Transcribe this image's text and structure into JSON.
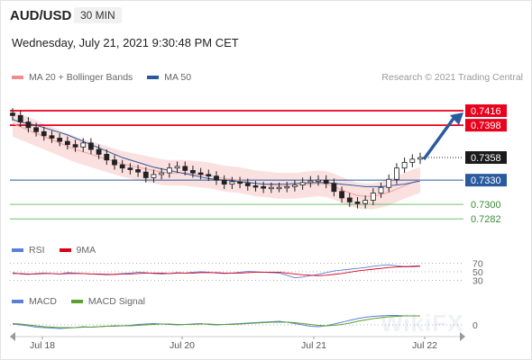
{
  "header": {
    "symbol": "AUD/USD",
    "timeframe": "30 MIN",
    "datetime": "Wednesday, July 21, 2021 9:30:48 PM CET"
  },
  "legend": {
    "ma20": "MA 20 + Bollinger Bands",
    "ma50": "MA 50",
    "copyright": "Research © 2021 Trading Central"
  },
  "rsi_legend": {
    "rsi": "RSI",
    "ma": "9MA"
  },
  "macd_legend": {
    "macd": "MACD",
    "signal": "MACD Signal"
  },
  "colors": {
    "resistance": "#e8001c",
    "support": "#5cb85c",
    "ma50": "#2a5a9e",
    "arrow": "#2a5aa0",
    "bollinger": "#f9d6d6",
    "rsi": "#5b7fd6",
    "rsi_ma": "#d9001b",
    "macd": "#5b7fd6",
    "signal": "#5aa02c",
    "price_tag": "#1a1a1a"
  },
  "chart_data": {
    "type": "candlestick",
    "x_ticks": [
      "Jul 18",
      "Jul 20",
      "Jul 21",
      "Jul 22"
    ],
    "ylim": [
      0.727,
      0.7426
    ],
    "levels": [
      {
        "label": "0.7416",
        "value": 0.7416,
        "kind": "resistance"
      },
      {
        "label": "0.7398",
        "value": 0.7398,
        "kind": "resistance"
      },
      {
        "label": "0.7358",
        "value": 0.7358,
        "kind": "last_price"
      },
      {
        "label": "0.7330",
        "value": 0.733,
        "kind": "pivot"
      },
      {
        "label": "0.7300",
        "value": 0.73,
        "kind": "support"
      },
      {
        "label": "0.7282",
        "value": 0.7282,
        "kind": "support"
      }
    ],
    "close": [
      0.741,
      0.7402,
      0.7395,
      0.739,
      0.7385,
      0.7382,
      0.7378,
      0.7374,
      0.7371,
      0.7376,
      0.7368,
      0.7362,
      0.7355,
      0.7349,
      0.7345,
      0.7343,
      0.734,
      0.7333,
      0.7337,
      0.7339,
      0.7345,
      0.7347,
      0.7342,
      0.7339,
      0.7337,
      0.7335,
      0.733,
      0.7325,
      0.7328,
      0.7326,
      0.7323,
      0.7322,
      0.732,
      0.7321,
      0.7321,
      0.7322,
      0.7324,
      0.7327,
      0.7329,
      0.733,
      0.7326,
      0.7316,
      0.7308,
      0.7303,
      0.7301,
      0.7305,
      0.7314,
      0.7321,
      0.7331,
      0.7345,
      0.7352,
      0.7356,
      0.7358
    ],
    "ma20": [
      0.74,
      0.7396,
      0.7392,
      0.7388,
      0.7384,
      0.738,
      0.7376,
      0.7372,
      0.7368,
      0.7365,
      0.7362,
      0.7359,
      0.7356,
      0.7353,
      0.735,
      0.7348,
      0.7346,
      0.7344,
      0.7342,
      0.734,
      0.7339,
      0.7339,
      0.7339,
      0.7338,
      0.7337,
      0.7336,
      0.7334,
      0.7332,
      0.7331,
      0.733,
      0.7328,
      0.7326,
      0.7325,
      0.7324,
      0.7323,
      0.7323,
      0.7323,
      0.7324,
      0.7325,
      0.7326,
      0.7325,
      0.7322,
      0.7318,
      0.7314,
      0.7311,
      0.731,
      0.731,
      0.7312,
      0.7315,
      0.7319,
      0.7323,
      0.7327,
      0.733
    ],
    "ma50": [
      0.7405,
      0.7402,
      0.74,
      0.7398,
      0.7395,
      0.7392,
      0.7389,
      0.7386,
      0.7382,
      0.7378,
      0.7374,
      0.737,
      0.7366,
      0.7362,
      0.7358,
      0.7355,
      0.7352,
      0.7349,
      0.7346,
      0.7344,
      0.7342,
      0.734,
      0.7338,
      0.7336,
      0.7334,
      0.7332,
      0.7331,
      0.733,
      0.7329,
      0.7328,
      0.7327,
      0.7326,
      0.7325,
      0.7325,
      0.7325,
      0.7325,
      0.7326,
      0.7326,
      0.7327,
      0.7327,
      0.7327,
      0.7326,
      0.7325,
      0.7324,
      0.7323,
      0.7322,
      0.7322,
      0.7322,
      0.7323,
      0.7324,
      0.7325,
      0.7327,
      0.7329
    ],
    "rsi": {
      "levels": [
        "70",
        "50",
        "30"
      ],
      "values": [
        48,
        45,
        44,
        46,
        47,
        46,
        45,
        48,
        47,
        46,
        45,
        44,
        43,
        44,
        46,
        47,
        49,
        48,
        46,
        45,
        46,
        48,
        47,
        49,
        50,
        49,
        47,
        46,
        47,
        49,
        51,
        50,
        49,
        48,
        47,
        42,
        36,
        38,
        41,
        44,
        48,
        52,
        54,
        56,
        58,
        60,
        63,
        65,
        66,
        64,
        62,
        63,
        64
      ],
      "ma": [
        46,
        46,
        45,
        45,
        46,
        46,
        45,
        46,
        46,
        46,
        45,
        45,
        44,
        44,
        45,
        45,
        46,
        47,
        47,
        47,
        46,
        47,
        47,
        47,
        48,
        48,
        48,
        47,
        47,
        47,
        48,
        49,
        49,
        49,
        49,
        47,
        45,
        43,
        42,
        41,
        42,
        44,
        46,
        49,
        52,
        54,
        56,
        58,
        60,
        61,
        62,
        62,
        63
      ]
    },
    "macd": {
      "zero_label": "0",
      "macd": [
        0.2,
        0.0,
        -0.2,
        -0.5,
        -0.6,
        -0.7,
        -0.8,
        -0.7,
        -0.6,
        -0.4,
        -0.5,
        -0.4,
        -0.3,
        -0.2,
        -0.2,
        -0.1,
        0.1,
        0.2,
        0.3,
        0.2,
        0.1,
        0.0,
        0.1,
        0.2,
        0.3,
        0.1,
        0.0,
        0.1,
        0.2,
        0.3,
        0.4,
        0.5,
        0.6,
        0.7,
        0.8,
        0.6,
        0.3,
        0.0,
        -0.3,
        -0.4,
        -0.2,
        0.2,
        0.6,
        1.0,
        1.4,
        1.7,
        1.9,
        2.0,
        2.1,
        2.1,
        2.0,
        2.0,
        2.0
      ],
      "signal": [
        0.3,
        0.2,
        0.0,
        -0.2,
        -0.4,
        -0.5,
        -0.6,
        -0.6,
        -0.6,
        -0.5,
        -0.5,
        -0.4,
        -0.3,
        -0.3,
        -0.2,
        -0.2,
        -0.1,
        0.0,
        0.1,
        0.2,
        0.2,
        0.1,
        0.1,
        0.1,
        0.2,
        0.2,
        0.1,
        0.1,
        0.1,
        0.2,
        0.3,
        0.4,
        0.5,
        0.6,
        0.6,
        0.6,
        0.5,
        0.3,
        0.1,
        -0.1,
        -0.2,
        -0.1,
        0.1,
        0.4,
        0.8,
        1.1,
        1.4,
        1.6,
        1.8,
        1.9,
        2.0,
        2.0,
        2.0
      ]
    }
  },
  "watermark": "WikiFX"
}
